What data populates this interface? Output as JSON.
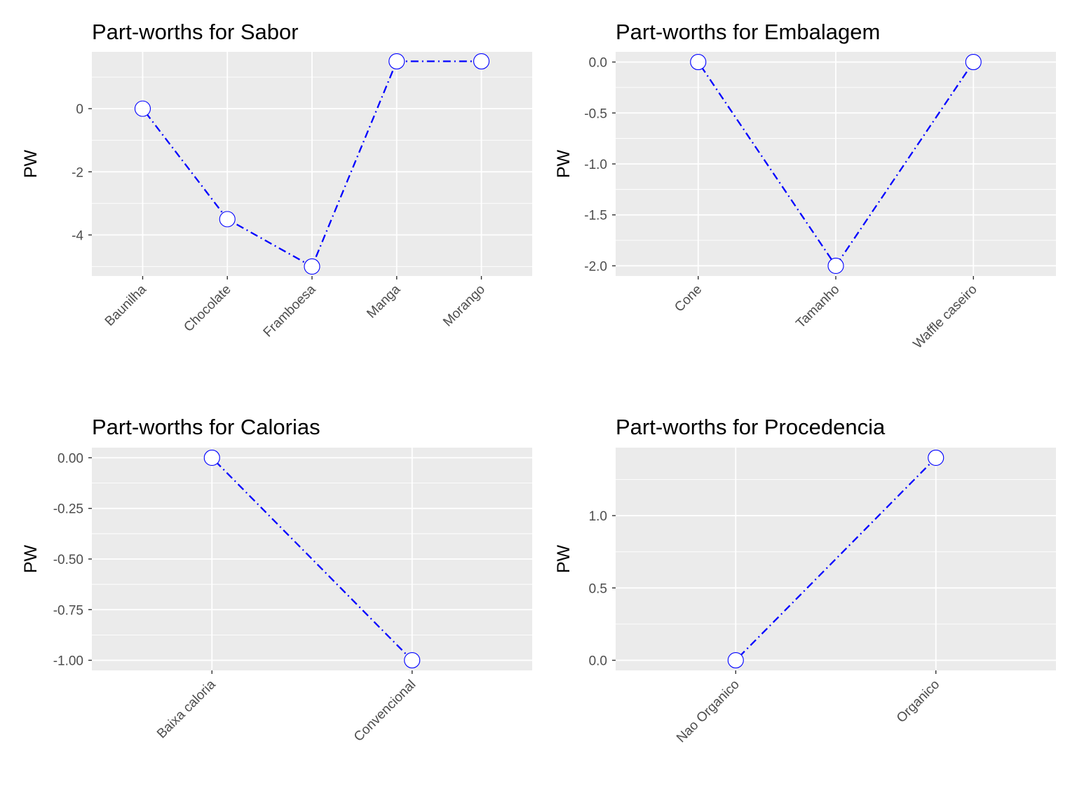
{
  "chart_data": [
    {
      "type": "line",
      "title": "Part-worths for Sabor",
      "ylabel": "PW",
      "categories": [
        "Baunilha",
        "Chocolate",
        "Framboesa",
        "Manga",
        "Morango"
      ],
      "values": [
        0,
        -3.5,
        -5,
        1.5,
        1.5
      ],
      "ylim": [
        -5.3,
        1.8
      ],
      "yticks": [
        -4,
        -2,
        0
      ],
      "ytick_labels": [
        "-4",
        "-2",
        "0"
      ],
      "grid": true,
      "line_style": "dotdash",
      "line_color": "#0000ff"
    },
    {
      "type": "line",
      "title": "Part-worths for Embalagem",
      "ylabel": "PW",
      "categories": [
        "Cone",
        "Tamanho",
        "Waffle caseiro"
      ],
      "values": [
        0,
        -2,
        0
      ],
      "ylim": [
        -2.1,
        0.1
      ],
      "yticks": [
        -2.0,
        -1.5,
        -1.0,
        -0.5,
        0.0
      ],
      "ytick_labels": [
        "-2.0",
        "-1.5",
        "-1.0",
        "-0.5",
        "0.0"
      ],
      "grid": true,
      "line_style": "dotdash",
      "line_color": "#0000ff"
    },
    {
      "type": "line",
      "title": "Part-worths for Calorias",
      "ylabel": "PW",
      "categories": [
        "Baixa caloria",
        "Convencional"
      ],
      "values": [
        0,
        -1
      ],
      "ylim": [
        -1.05,
        0.05
      ],
      "yticks": [
        -1.0,
        -0.75,
        -0.5,
        -0.25,
        0.0
      ],
      "ytick_labels": [
        "-1.00",
        "-0.75",
        "-0.50",
        "-0.25",
        "0.00"
      ],
      "grid": true,
      "line_style": "dotdash",
      "line_color": "#0000ff"
    },
    {
      "type": "line",
      "title": "Part-worths for Procedencia",
      "ylabel": "PW",
      "categories": [
        "Nao Organico",
        "Organico"
      ],
      "values": [
        0,
        1.4
      ],
      "ylim": [
        -0.07,
        1.47
      ],
      "yticks": [
        0.0,
        0.5,
        1.0
      ],
      "ytick_labels": [
        "0.0",
        "0.5",
        "1.0"
      ],
      "grid": true,
      "line_style": "dotdash",
      "line_color": "#0000ff"
    }
  ],
  "colors": {
    "panel_background": "#ebebeb",
    "grid_major": "#ffffff",
    "line": "#0000ff",
    "point_fill": "#ffffff",
    "point_stroke": "#0000ff",
    "tick_text": "#4d4d4d"
  }
}
